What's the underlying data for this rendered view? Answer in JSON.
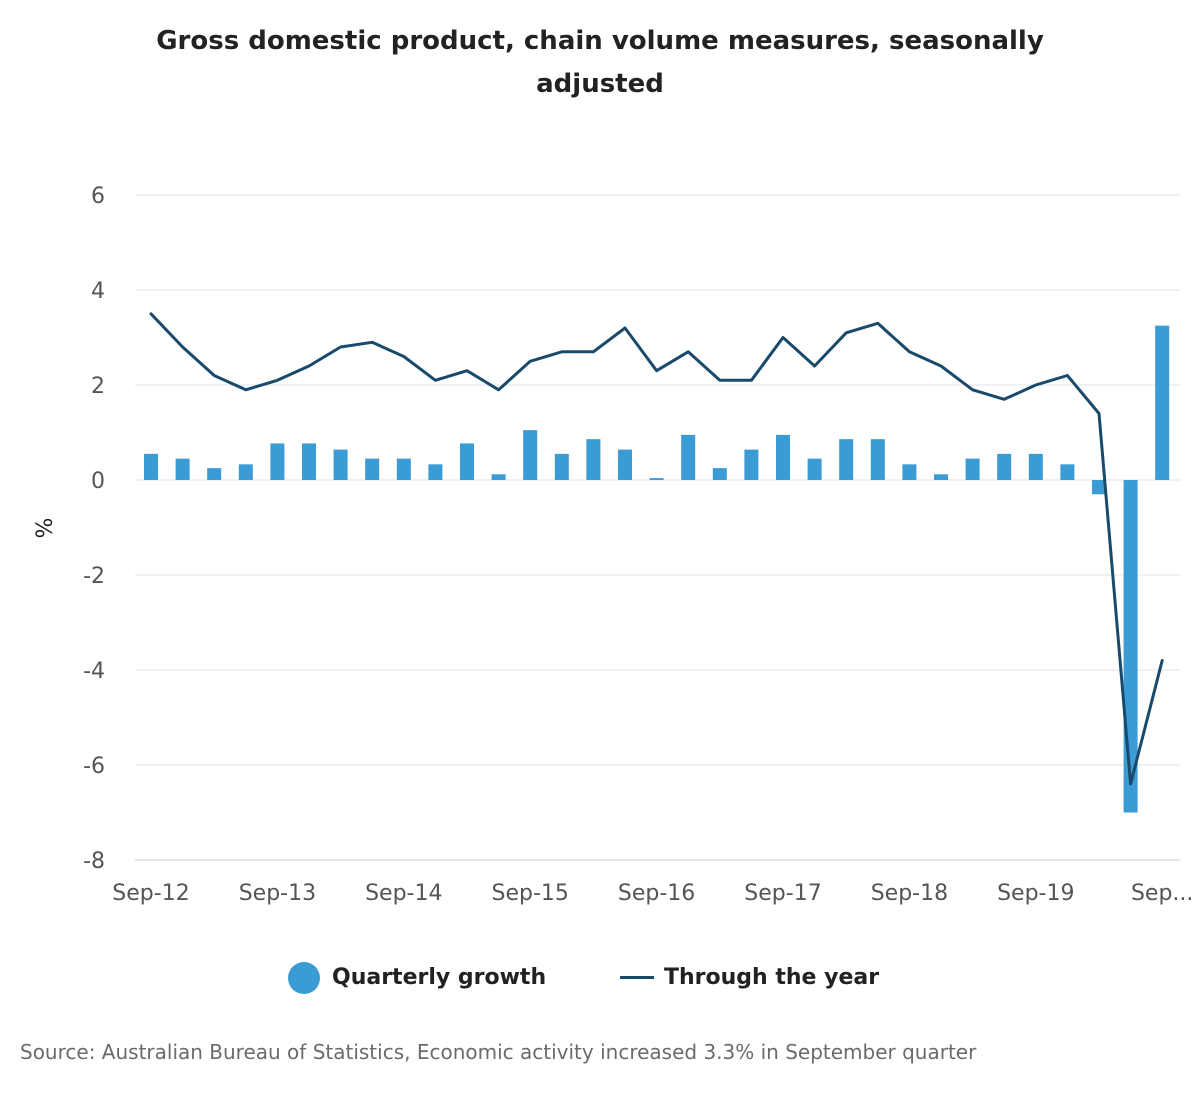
{
  "chart_data": {
    "type": "bar+line",
    "title": "Gross domestic product, chain volume measures, seasonally adjusted",
    "ylabel": "%",
    "ylim": [
      -8,
      6
    ],
    "yticks": [
      6,
      4,
      2,
      0,
      -2,
      -4,
      -6,
      -8
    ],
    "grid": true,
    "tick_labels": [
      "Sep-12",
      "Sep-13",
      "Sep-14",
      "Sep-15",
      "Sep-16",
      "Sep-17",
      "Sep-18",
      "Sep-19",
      "Sep..."
    ],
    "categories": [
      "Sep-12",
      "Dec-12",
      "Mar-13",
      "Jun-13",
      "Sep-13",
      "Dec-13",
      "Mar-14",
      "Jun-14",
      "Sep-14",
      "Dec-14",
      "Mar-15",
      "Jun-15",
      "Sep-15",
      "Dec-15",
      "Mar-16",
      "Jun-16",
      "Sep-16",
      "Dec-16",
      "Mar-17",
      "Jun-17",
      "Sep-17",
      "Dec-17",
      "Mar-18",
      "Jun-18",
      "Sep-18",
      "Dec-18",
      "Mar-19",
      "Jun-19",
      "Sep-19",
      "Dec-19",
      "Mar-20",
      "Jun-20",
      "Sep-20"
    ],
    "series": [
      {
        "name": "Quarterly growth",
        "kind": "bar",
        "color": "#3a9bd5",
        "values": [
          0.55,
          0.45,
          0.25,
          0.33,
          0.77,
          0.77,
          0.64,
          0.45,
          0.45,
          0.33,
          0.77,
          0.12,
          1.05,
          0.55,
          0.86,
          0.64,
          0.04,
          0.95,
          0.25,
          0.64,
          0.95,
          0.45,
          0.86,
          0.86,
          0.33,
          0.12,
          0.45,
          0.55,
          0.55,
          0.33,
          -0.3,
          -7.0,
          3.25
        ]
      },
      {
        "name": "Through the year",
        "kind": "line",
        "color": "#1a4a6b",
        "values": [
          3.5,
          2.8,
          2.2,
          1.9,
          2.1,
          2.4,
          2.8,
          2.9,
          2.6,
          2.1,
          2.3,
          1.9,
          2.5,
          2.7,
          2.7,
          3.2,
          2.3,
          2.7,
          2.1,
          2.1,
          3.0,
          2.4,
          3.1,
          3.3,
          2.7,
          2.4,
          1.9,
          1.7,
          2.0,
          2.2,
          1.4,
          -6.4,
          -3.8
        ]
      }
    ],
    "legend_position": "bottom"
  },
  "source": "Source: Australian Bureau of Statistics, Economic activity increased 3.3% in September quarter"
}
